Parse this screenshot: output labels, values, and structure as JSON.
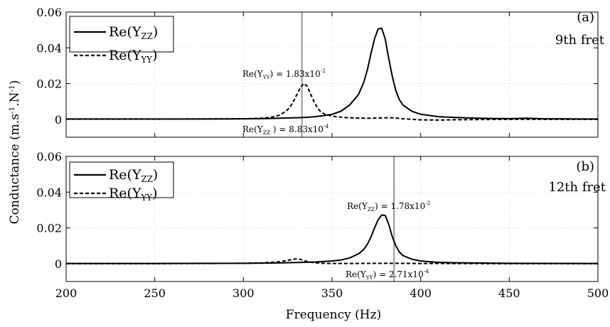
{
  "chart_data": [
    {
      "type": "line",
      "panel": "(a)",
      "tag_line2": "9th fret",
      "xlim": [
        200,
        500
      ],
      "ylim": [
        -0.01,
        0.06
      ],
      "xticks": [
        200,
        250,
        300,
        350,
        400,
        450,
        500
      ],
      "yticks": [
        0,
        0.02,
        0.04,
        0.06
      ],
      "ytick_labels": [
        "0",
        "0.02",
        "0.04",
        "0.06"
      ],
      "grid": true,
      "legend_position": "top-left",
      "series": [
        {
          "name": "Re(Y_ZZ)",
          "style": "solid",
          "x": [
            200,
            250,
            280,
            300,
            310,
            320,
            330,
            335,
            340,
            345,
            350,
            355,
            360,
            365,
            368,
            370,
            372,
            374,
            376,
            378,
            380,
            382,
            384,
            386,
            388,
            390,
            395,
            400,
            410,
            420,
            430,
            440,
            450,
            460,
            470,
            480,
            490,
            500
          ],
          "y": [
            0.0002,
            0.0002,
            0.0002,
            0.0003,
            0.0004,
            0.0006,
            0.0009,
            0.0011,
            0.0014,
            0.002,
            0.0028,
            0.0045,
            0.008,
            0.014,
            0.021,
            0.028,
            0.037,
            0.045,
            0.0505,
            0.051,
            0.045,
            0.034,
            0.024,
            0.016,
            0.011,
            0.008,
            0.0045,
            0.0028,
            0.0015,
            0.001,
            0.0007,
            0.0005,
            0.0004,
            0.0006,
            0.0003,
            0.0003,
            0.0002,
            0.0002
          ]
        },
        {
          "name": "Re(Y_YY)",
          "style": "dashed",
          "x": [
            200,
            250,
            300,
            310,
            315,
            320,
            324,
            326,
            328,
            330,
            332,
            334,
            336,
            338,
            340,
            342,
            344,
            346,
            350,
            355,
            360,
            370,
            380,
            385,
            390,
            400,
            410,
            420,
            450,
            500
          ],
          "y": [
            0.0001,
            0.0001,
            0.0003,
            0.0006,
            0.001,
            0.0022,
            0.0045,
            0.0065,
            0.0095,
            0.0135,
            0.0175,
            0.0201,
            0.0185,
            0.014,
            0.0095,
            0.006,
            0.004,
            0.0028,
            0.0018,
            0.0012,
            0.0008,
            0.0006,
            0.0008,
            0.0009,
            0.0003,
            -0.0003,
            -0.0004,
            -0.0002,
            0.0,
            0.0
          ]
        }
      ],
      "marker_x": 333,
      "annotations": [
        {
          "base": "Re(Y",
          "sub": "YY",
          "mid": ") = 1.83x10",
          "sup": "-2"
        },
        {
          "base": "Re(Y",
          "sub": "ZZ",
          "mid": " ) = 8.83x10",
          "sup": "-4"
        }
      ]
    },
    {
      "type": "line",
      "panel": "(b)",
      "tag_line2": "12th fret",
      "xlim": [
        200,
        500
      ],
      "ylim": [
        -0.01,
        0.06
      ],
      "xticks": [
        200,
        250,
        300,
        350,
        400,
        450,
        500
      ],
      "xtick_labels": [
        "200",
        "250",
        "300",
        "350",
        "400",
        "450",
        "500"
      ],
      "yticks": [
        0,
        0.02,
        0.04,
        0.06
      ],
      "ytick_labels": [
        "0",
        "0.02",
        "0.04",
        "0.06"
      ],
      "grid": true,
      "legend_position": "top-left",
      "series": [
        {
          "name": "Re(Y_ZZ)",
          "style": "solid",
          "x": [
            200,
            250,
            300,
            320,
            340,
            350,
            355,
            360,
            365,
            368,
            370,
            372,
            374,
            376,
            378,
            380,
            382,
            384,
            386,
            388,
            390,
            395,
            400,
            410,
            420,
            450,
            500
          ],
          "y": [
            0.0001,
            0.0001,
            0.0002,
            0.0004,
            0.0009,
            0.0015,
            0.002,
            0.0032,
            0.0055,
            0.008,
            0.011,
            0.015,
            0.02,
            0.0245,
            0.0272,
            0.027,
            0.022,
            0.015,
            0.01,
            0.0065,
            0.0045,
            0.0025,
            0.0015,
            0.0007,
            0.0005,
            0.0002,
            0.0001
          ]
        },
        {
          "name": "Re(Y_YY)",
          "style": "dashed",
          "x": [
            200,
            250,
            300,
            310,
            320,
            325,
            328,
            330,
            332,
            334,
            336,
            340,
            345,
            350,
            360,
            380,
            385,
            400,
            450,
            500
          ],
          "y": [
            0.0,
            0.0,
            0.0002,
            0.0004,
            0.001,
            0.0018,
            0.0024,
            0.0027,
            0.0024,
            0.0018,
            0.0012,
            0.0005,
            0.0002,
            0.0001,
            0.0001,
            0.0002,
            0.0002,
            0.0001,
            0.0,
            0.0
          ]
        }
      ],
      "marker_x": 385,
      "annotations": [
        {
          "base": "Re(Y",
          "sub": "ZZ",
          "mid": ") = 1.78x10",
          "sup": "-2"
        },
        {
          "base": "Re(Y",
          "sub": "YY",
          "mid": ") = 2.71x10",
          "sup": "-4"
        }
      ]
    }
  ],
  "labels": {
    "xlabel": "Frequency (Hz)",
    "ylabel": "Conductance (m.s",
    "ylabel_sup1": "-1",
    "ylabel_mid": ".N",
    "ylabel_sup2": "-1",
    "ylabel_end": ")"
  },
  "legend": {
    "zz": {
      "base": "Re(Y",
      "sub": "ZZ",
      "end": ")"
    },
    "yy": {
      "base": "Re(Y",
      "sub": "YY",
      "end": ")"
    }
  },
  "colors": {
    "curve": "#000000",
    "marker": "#999999",
    "grid": "#cfcfcf"
  }
}
